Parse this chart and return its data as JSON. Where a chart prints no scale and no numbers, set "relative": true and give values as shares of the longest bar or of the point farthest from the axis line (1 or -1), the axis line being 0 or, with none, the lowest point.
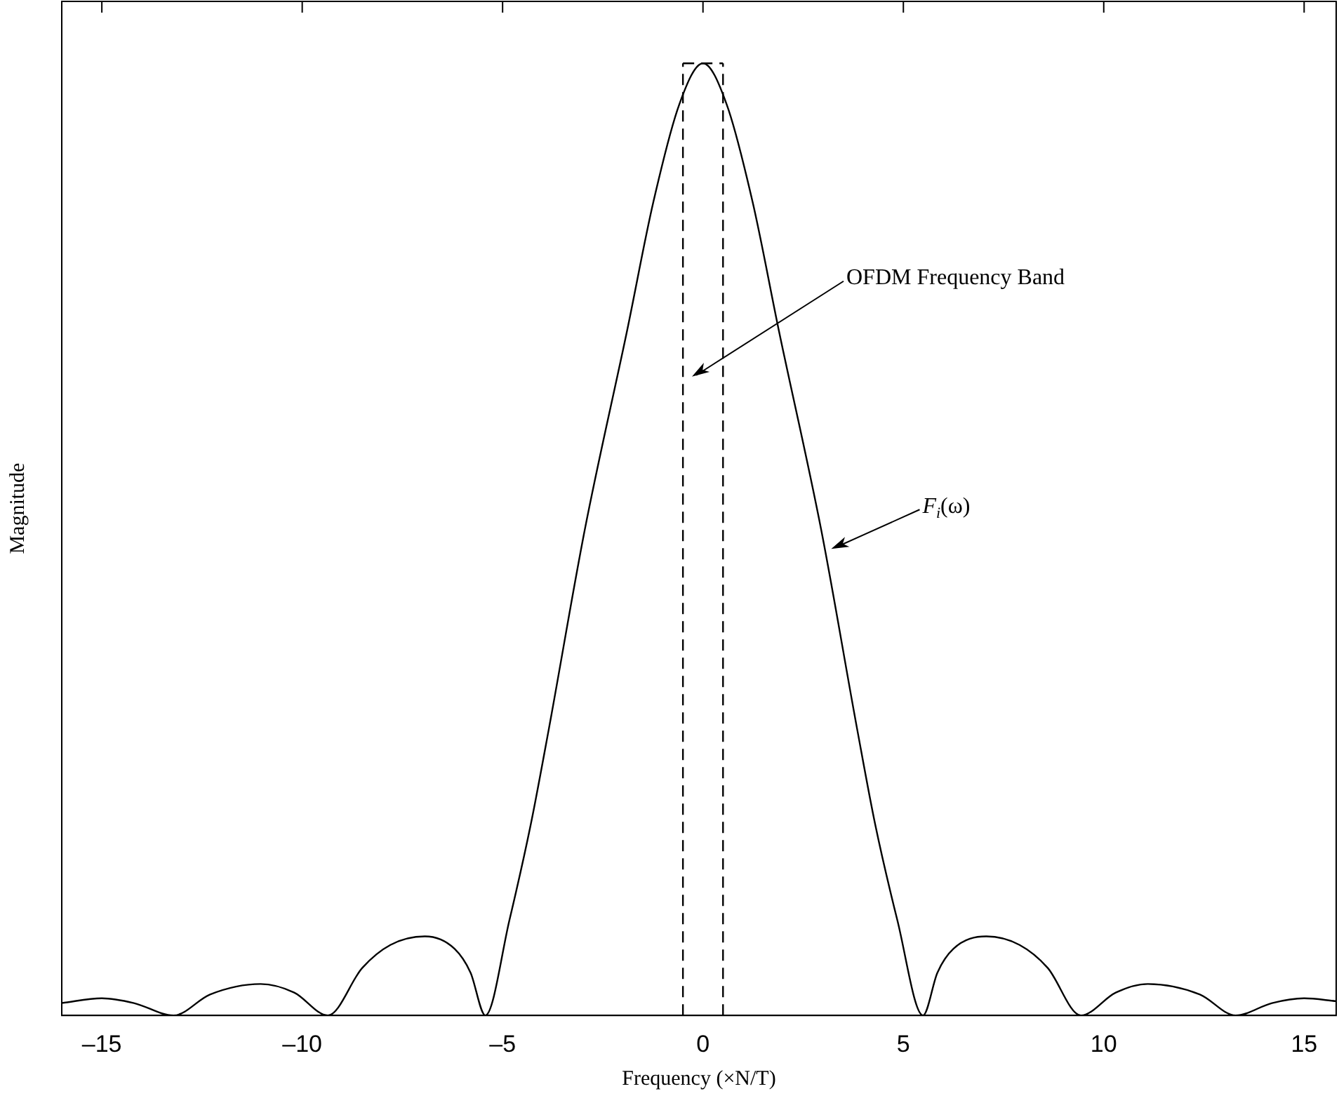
{
  "chart_data": {
    "type": "line",
    "xlabel": "Frequency (×N/T)",
    "ylabel": "Magnitude",
    "relative": true,
    "x": [
      -16.0,
      -15.0,
      -14.2,
      -13.21,
      -12.3,
      -11.04,
      -10.2,
      -9.36,
      -8.5,
      -7.8,
      -6.94,
      -6.2,
      -5.8,
      -5.43,
      -4.83,
      -4.3,
      -3.85,
      -2.95,
      -1.89,
      -1.24,
      -0.59,
      0,
      0.59,
      1.24,
      1.89,
      2.95,
      3.85,
      4.3,
      4.85,
      5.49,
      5.85,
      6.25,
      7.07,
      7.9,
      8.6,
      9.43,
      10.3,
      11.1,
      12.4,
      13.29,
      14.2,
      15.0,
      15.8
    ],
    "series": [
      {
        "color": "#000000",
        "values": [
          0.013,
          0.018,
          0.013,
          0,
          0.022,
          0.033,
          0.024,
          0,
          0.05,
          0.074,
          0.083,
          0.07,
          0.045,
          0,
          0.1,
          0.2,
          0.3,
          0.51,
          0.72,
          0.854,
          0.957,
          1,
          0.957,
          0.854,
          0.72,
          0.51,
          0.3,
          0.2,
          0.1,
          0,
          0.045,
          0.07,
          0.083,
          0.074,
          0.05,
          0,
          0.024,
          0.033,
          0.022,
          0,
          0.013,
          0.018,
          0.015
        ]
      }
    ],
    "xlim": [
      -16,
      15.8
    ],
    "xticks": [
      {
        "value": -15,
        "label": "–15"
      },
      {
        "value": -10,
        "label": "–10"
      },
      {
        "value": -5,
        "label": "–5"
      },
      0,
      5,
      10,
      15
    ],
    "ref_lines": [
      {
        "axis": "x",
        "value": -0.5,
        "color": "#000000",
        "line_style": "dashed"
      },
      {
        "axis": "x",
        "value": 0.5,
        "color": "#000000",
        "line_style": "dashed"
      }
    ],
    "annotations": [
      "OFDM Frequency Band",
      {
        "text": "F$_{i}$(ω)",
        "x": 3.2,
        "y": 0.49
      }
    ],
    "grid": false,
    "legend": false,
    "marker": "none",
    "line_style": "solid"
  }
}
